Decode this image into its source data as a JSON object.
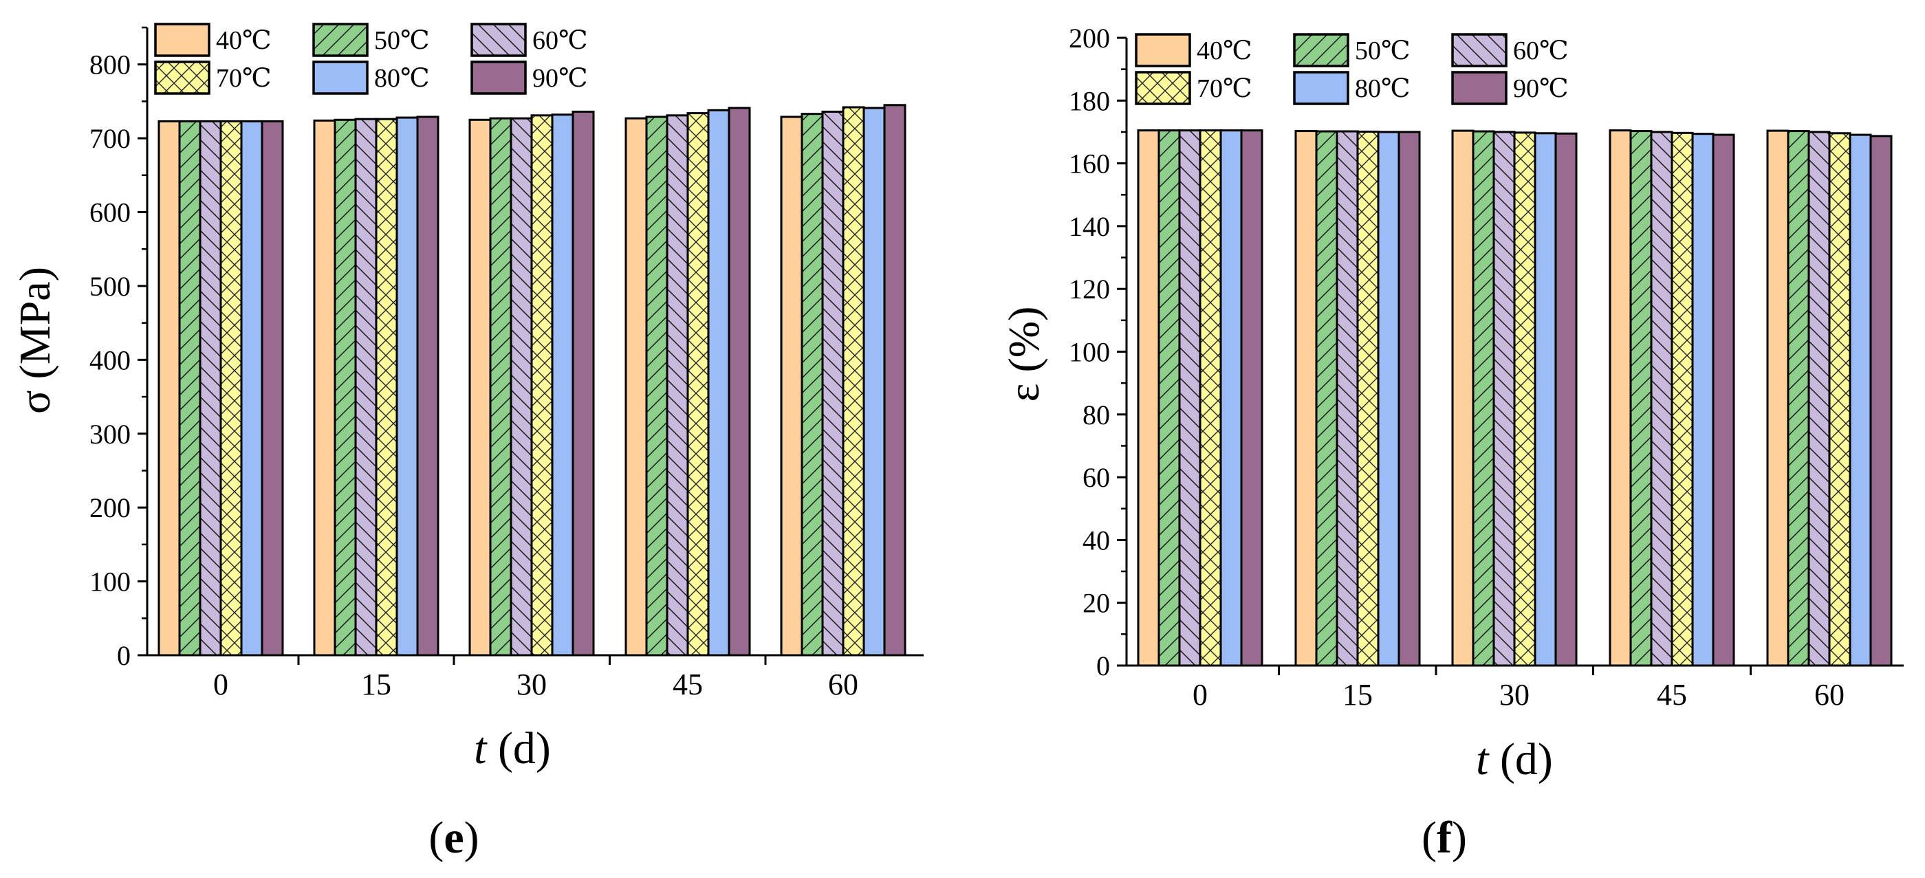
{
  "colors": {
    "40C": "#fdd09c",
    "50C": "#8fcf8c",
    "60C": "#c9b9dd",
    "70C": "#fdfb9c",
    "80C": "#9bbcf6",
    "90C": "#9a6b90"
  },
  "chart_data": [
    {
      "type": "bar",
      "panel_label": "(e)",
      "panel_letter": "e",
      "xlabel_italic": "t",
      "xlabel_rest": " (d)",
      "ylabel": "σ (MPa)",
      "categories": [
        "0",
        "15",
        "30",
        "45",
        "60"
      ],
      "yticks": [
        "0",
        "100",
        "200",
        "300",
        "400",
        "500",
        "600",
        "700",
        "800"
      ],
      "ylim": [
        0,
        850
      ],
      "legend_position": "top-left",
      "series": [
        {
          "name": "40℃",
          "key": "40C",
          "pattern": "solid",
          "values": [
            723,
            724,
            725,
            727,
            729
          ]
        },
        {
          "name": "50℃",
          "key": "50C",
          "pattern": "hatch-forward",
          "values": [
            723,
            725,
            727,
            729,
            733
          ]
        },
        {
          "name": "60℃",
          "key": "60C",
          "pattern": "hatch-back",
          "values": [
            723,
            726,
            727,
            731,
            736
          ]
        },
        {
          "name": "70℃",
          "key": "70C",
          "pattern": "crosshatch",
          "values": [
            723,
            726,
            731,
            734,
            742
          ]
        },
        {
          "name": "80℃",
          "key": "80C",
          "pattern": "solid",
          "values": [
            723,
            728,
            732,
            738,
            741
          ]
        },
        {
          "name": "90℃",
          "key": "90C",
          "pattern": "solid",
          "values": [
            723,
            729,
            736,
            741,
            745
          ]
        }
      ]
    },
    {
      "type": "bar",
      "panel_label": "(f)",
      "panel_letter": "f",
      "xlabel_italic": "t",
      "xlabel_rest": " (d)",
      "ylabel": "ε (%)",
      "categories": [
        "0",
        "15",
        "30",
        "45",
        "60"
      ],
      "yticks": [
        "0",
        "20",
        "40",
        "60",
        "80",
        "100",
        "120",
        "140",
        "160",
        "180",
        "200"
      ],
      "ylim": [
        0,
        200
      ],
      "legend_position": "top-left",
      "series": [
        {
          "name": "40℃",
          "key": "40C",
          "pattern": "solid",
          "values": [
            170.5,
            170.3,
            170.4,
            170.5,
            170.4
          ]
        },
        {
          "name": "50℃",
          "key": "50C",
          "pattern": "hatch-forward",
          "values": [
            170.5,
            170.2,
            170.2,
            170.3,
            170.3
          ]
        },
        {
          "name": "60℃",
          "key": "60C",
          "pattern": "hatch-back",
          "values": [
            170.5,
            170.2,
            170.0,
            170.0,
            170.0
          ]
        },
        {
          "name": "70℃",
          "key": "70C",
          "pattern": "crosshatch",
          "values": [
            170.5,
            170.1,
            169.8,
            169.7,
            169.6
          ]
        },
        {
          "name": "80℃",
          "key": "80C",
          "pattern": "solid",
          "values": [
            170.5,
            170.0,
            169.6,
            169.4,
            169.1
          ]
        },
        {
          "name": "90℃",
          "key": "90C",
          "pattern": "solid",
          "values": [
            170.5,
            170.0,
            169.5,
            169.1,
            168.7
          ]
        }
      ]
    }
  ]
}
